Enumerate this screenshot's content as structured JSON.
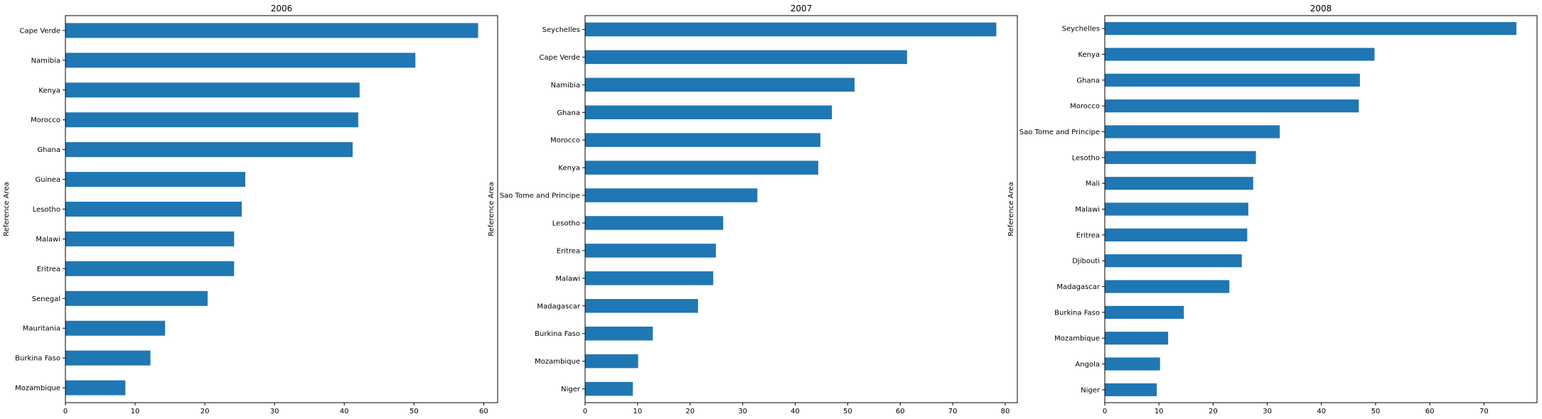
{
  "chart_data": [
    {
      "type": "bar",
      "orientation": "horizontal",
      "title": "2006",
      "ylabel": "Reference Area",
      "xlabel": "",
      "xlim": [
        0,
        62
      ],
      "xticks": [
        0,
        10,
        20,
        30,
        40,
        50,
        60
      ],
      "grid": false,
      "bar_color": "#1f77b4",
      "categories": [
        "Cape Verde",
        "Namibia",
        "Kenya",
        "Morocco",
        "Ghana",
        "Guinea",
        "Lesotho",
        "Malawi",
        "Eritrea",
        "Senegal",
        "Mauritania",
        "Burkina Faso",
        "Mozambique"
      ],
      "values": [
        59.2,
        50.2,
        42.2,
        42.0,
        41.2,
        25.8,
        25.3,
        24.2,
        24.2,
        20.4,
        14.3,
        12.2,
        8.6
      ]
    },
    {
      "type": "bar",
      "orientation": "horizontal",
      "title": "2007",
      "ylabel": "Reference Area",
      "xlabel": "",
      "xlim": [
        0,
        82.3
      ],
      "xticks": [
        0,
        10,
        20,
        30,
        40,
        50,
        60,
        70,
        80
      ],
      "grid": false,
      "bar_color": "#1f77b4",
      "categories": [
        "Seychelles",
        "Cape Verde",
        "Namibia",
        "Ghana",
        "Morocco",
        "Kenya",
        "Sao Tome and Principe",
        "Lesotho",
        "Eritrea",
        "Malawi",
        "Madagascar",
        "Burkina Faso",
        "Mozambique",
        "Niger"
      ],
      "values": [
        78.3,
        61.3,
        51.3,
        47.0,
        44.8,
        44.4,
        32.8,
        26.3,
        24.9,
        24.4,
        21.5,
        12.9,
        10.1,
        9.1
      ]
    },
    {
      "type": "bar",
      "orientation": "horizontal",
      "title": "2008",
      "ylabel": "Reference Area",
      "xlabel": "",
      "xlim": [
        0,
        79.8
      ],
      "xticks": [
        0,
        10,
        20,
        30,
        40,
        50,
        60,
        70
      ],
      "grid": false,
      "bar_color": "#1f77b4",
      "categories": [
        "Seychelles",
        "Kenya",
        "Ghana",
        "Morocco",
        "Sao Tome and Principe",
        "Lesotho",
        "Mali",
        "Malawi",
        "Eritrea",
        "Djibouti",
        "Madagascar",
        "Burkina Faso",
        "Mozambique",
        "Angola",
        "Niger"
      ],
      "values": [
        76.0,
        49.8,
        47.1,
        46.9,
        32.3,
        27.9,
        27.4,
        26.5,
        26.3,
        25.3,
        23.0,
        14.6,
        11.7,
        10.2,
        9.6
      ]
    }
  ]
}
